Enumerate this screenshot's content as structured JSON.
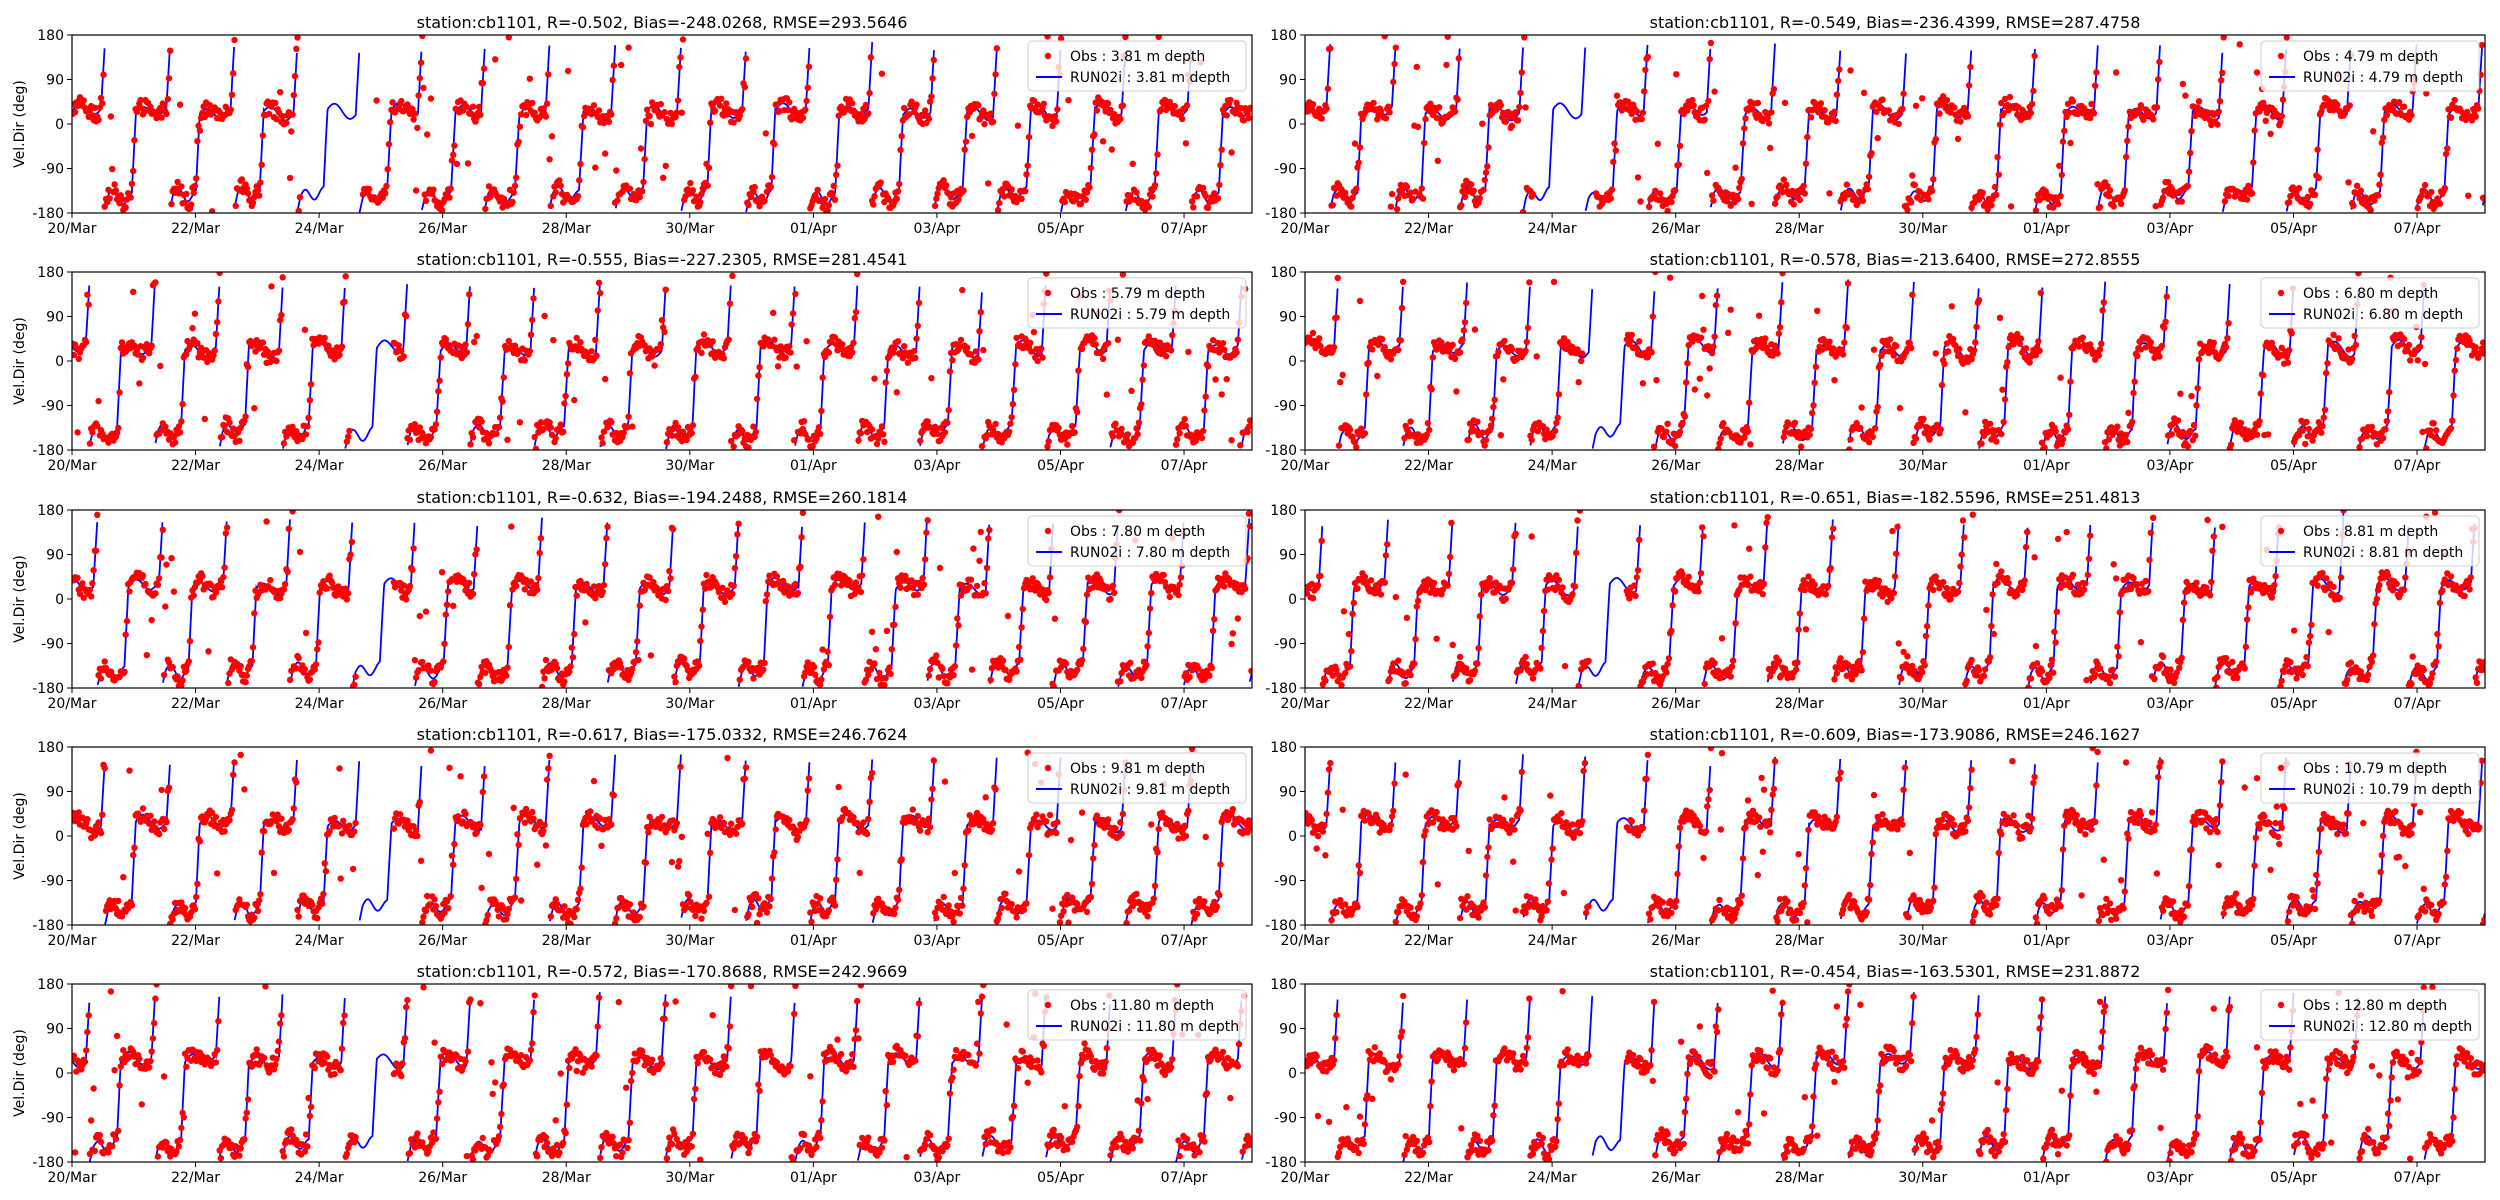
{
  "figure": {
    "ylabel": "Vel.Dir (deg)",
    "xticks": [
      "20/Mar",
      "22/Mar",
      "24/Mar",
      "26/Mar",
      "28/Mar",
      "30/Mar",
      "01/Apr",
      "03/Apr",
      "05/Apr",
      "07/Apr"
    ],
    "yticks": [
      "-180",
      "-90",
      "0",
      "90",
      "180"
    ]
  },
  "colors": {
    "obs": "#ff0000",
    "model": "#0000ff",
    "axis": "#000000",
    "legend_border": "#cccccc"
  },
  "chart_data": [
    {
      "type": "line",
      "title": "station:cb1101, R=-0.502, Bias=-248.0268, RMSE=293.5646",
      "ylabel": "Vel.Dir (deg)",
      "ylim": [
        -180,
        180
      ],
      "xlim_days": [
        0,
        19.1
      ],
      "x_tick_labels": [
        "20/Mar",
        "22/Mar",
        "24/Mar",
        "26/Mar",
        "28/Mar",
        "30/Mar",
        "01/Apr",
        "03/Apr",
        "05/Apr",
        "07/Apr"
      ],
      "legend": "upper right",
      "series": [
        {
          "name": "Obs : 3.81 m depth",
          "style": "scatter",
          "color": "#ff0000"
        },
        {
          "name": "RUN02i : 3.81 m depth",
          "style": "line",
          "color": "#0000ff"
        }
      ],
      "gap_days": [
        3.7,
        4.7
      ]
    },
    {
      "type": "line",
      "title": "station:cb1101, R=-0.549, Bias=-236.4399, RMSE=287.4758",
      "ylabel": "",
      "ylim": [
        -180,
        180
      ],
      "xlim_days": [
        0,
        19.1
      ],
      "x_tick_labels": [
        "20/Mar",
        "22/Mar",
        "24/Mar",
        "26/Mar",
        "28/Mar",
        "30/Mar",
        "01/Apr",
        "03/Apr",
        "05/Apr",
        "07/Apr"
      ],
      "legend": "upper right",
      "series": [
        {
          "name": "Obs : 4.79 m depth",
          "style": "scatter",
          "color": "#ff0000"
        },
        {
          "name": "RUN02i : 4.79 m depth",
          "style": "line",
          "color": "#0000ff"
        }
      ],
      "gap_days": [
        3.7,
        4.7
      ]
    },
    {
      "type": "line",
      "title": "station:cb1101, R=-0.555, Bias=-227.2305, RMSE=281.4541",
      "ylabel": "Vel.Dir (deg)",
      "ylim": [
        -180,
        180
      ],
      "xlim_days": [
        0,
        19.1
      ],
      "x_tick_labels": [
        "20/Mar",
        "22/Mar",
        "24/Mar",
        "26/Mar",
        "28/Mar",
        "30/Mar",
        "01/Apr",
        "03/Apr",
        "05/Apr",
        "07/Apr"
      ],
      "legend": "upper right",
      "series": [
        {
          "name": "Obs : 5.79 m depth",
          "style": "scatter",
          "color": "#ff0000"
        },
        {
          "name": "RUN02i : 5.79 m depth",
          "style": "line",
          "color": "#0000ff"
        }
      ],
      "gap_days": [
        4.5,
        5.2
      ]
    },
    {
      "type": "line",
      "title": "station:cb1101, R=-0.578, Bias=-213.6400, RMSE=272.8555",
      "ylabel": "",
      "ylim": [
        -180,
        180
      ],
      "xlim_days": [
        0,
        19.1
      ],
      "x_tick_labels": [
        "20/Mar",
        "22/Mar",
        "24/Mar",
        "26/Mar",
        "28/Mar",
        "30/Mar",
        "01/Apr",
        "03/Apr",
        "05/Apr",
        "07/Apr"
      ],
      "legend": "upper right",
      "series": [
        {
          "name": "Obs : 6.80 m depth",
          "style": "scatter",
          "color": "#ff0000"
        },
        {
          "name": "RUN02i : 6.80 m depth",
          "style": "line",
          "color": "#0000ff"
        }
      ],
      "gap_days": [
        4.5,
        5.2
      ]
    },
    {
      "type": "line",
      "title": "station:cb1101, R=-0.632, Bias=-194.2488, RMSE=260.1814",
      "ylabel": "Vel.Dir (deg)",
      "ylim": [
        -180,
        180
      ],
      "xlim_days": [
        0,
        19.1
      ],
      "x_tick_labels": [
        "20/Mar",
        "22/Mar",
        "24/Mar",
        "26/Mar",
        "28/Mar",
        "30/Mar",
        "01/Apr",
        "03/Apr",
        "05/Apr",
        "07/Apr"
      ],
      "legend": "upper right",
      "series": [
        {
          "name": "Obs : 7.80 m depth",
          "style": "scatter",
          "color": "#ff0000"
        },
        {
          "name": "RUN02i : 7.80 m depth",
          "style": "line",
          "color": "#0000ff"
        }
      ],
      "gap_days": [
        4.6,
        5.2
      ]
    },
    {
      "type": "line",
      "title": "station:cb1101, R=-0.651, Bias=-182.5596, RMSE=251.4813",
      "ylabel": "",
      "ylim": [
        -180,
        180
      ],
      "xlim_days": [
        0,
        19.1
      ],
      "x_tick_labels": [
        "20/Mar",
        "22/Mar",
        "24/Mar",
        "26/Mar",
        "28/Mar",
        "30/Mar",
        "01/Apr",
        "03/Apr",
        "05/Apr",
        "07/Apr"
      ],
      "legend": "upper right",
      "series": [
        {
          "name": "Obs : 8.81 m depth",
          "style": "scatter",
          "color": "#ff0000"
        },
        {
          "name": "RUN02i : 8.81 m depth",
          "style": "line",
          "color": "#0000ff"
        }
      ],
      "gap_days": [
        4.6,
        5.2
      ]
    },
    {
      "type": "line",
      "title": "station:cb1101, R=-0.617, Bias=-175.0332, RMSE=246.7624",
      "ylabel": "Vel.Dir (deg)",
      "ylim": [
        -180,
        180
      ],
      "xlim_days": [
        0,
        19.1
      ],
      "x_tick_labels": [
        "20/Mar",
        "22/Mar",
        "24/Mar",
        "26/Mar",
        "28/Mar",
        "30/Mar",
        "01/Apr",
        "03/Apr",
        "05/Apr",
        "07/Apr"
      ],
      "legend": "upper right",
      "series": [
        {
          "name": "Obs : 9.81 m depth",
          "style": "scatter",
          "color": "#ff0000"
        },
        {
          "name": "RUN02i : 9.81 m depth",
          "style": "line",
          "color": "#0000ff"
        }
      ],
      "gap_days": [
        4.6,
        5.2
      ]
    },
    {
      "type": "line",
      "title": "station:cb1101, R=-0.609, Bias=-173.9086, RMSE=246.1627",
      "ylabel": "",
      "ylim": [
        -180,
        180
      ],
      "xlim_days": [
        0,
        19.1
      ],
      "x_tick_labels": [
        "20/Mar",
        "22/Mar",
        "24/Mar",
        "26/Mar",
        "28/Mar",
        "30/Mar",
        "01/Apr",
        "03/Apr",
        "05/Apr",
        "07/Apr"
      ],
      "legend": "upper right",
      "series": [
        {
          "name": "Obs : 10.79 m depth",
          "style": "scatter",
          "color": "#ff0000"
        },
        {
          "name": "RUN02i : 10.79 m depth",
          "style": "line",
          "color": "#0000ff"
        }
      ],
      "gap_days": [
        4.6,
        5.2
      ]
    },
    {
      "type": "line",
      "title": "station:cb1101, R=-0.572, Bias=-170.8688, RMSE=242.9669",
      "ylabel": "Vel.Dir (deg)",
      "ylim": [
        -180,
        180
      ],
      "xlim_days": [
        0,
        19.1
      ],
      "x_tick_labels": [
        "20/Mar",
        "22/Mar",
        "24/Mar",
        "26/Mar",
        "28/Mar",
        "30/Mar",
        "01/Apr",
        "03/Apr",
        "05/Apr",
        "07/Apr"
      ],
      "legend": "upper right",
      "series": [
        {
          "name": "Obs : 11.80 m depth",
          "style": "scatter",
          "color": "#ff0000"
        },
        {
          "name": "RUN02i : 11.80 m depth",
          "style": "line",
          "color": "#0000ff"
        }
      ],
      "gap_days": [
        4.6,
        5.2
      ]
    },
    {
      "type": "line",
      "title": "station:cb1101, R=-0.454, Bias=-163.5301, RMSE=231.8872",
      "ylabel": "",
      "ylim": [
        -180,
        180
      ],
      "xlim_days": [
        0,
        19.1
      ],
      "x_tick_labels": [
        "20/Mar",
        "22/Mar",
        "24/Mar",
        "26/Mar",
        "28/Mar",
        "30/Mar",
        "01/Apr",
        "03/Apr",
        "05/Apr",
        "07/Apr"
      ],
      "legend": "upper right",
      "series": [
        {
          "name": "Obs : 12.80 m depth",
          "style": "scatter",
          "color": "#ff0000"
        },
        {
          "name": "RUN02i : 12.80 m depth",
          "style": "line",
          "color": "#0000ff"
        }
      ],
      "gap_days": [
        4.6,
        5.2
      ]
    }
  ]
}
